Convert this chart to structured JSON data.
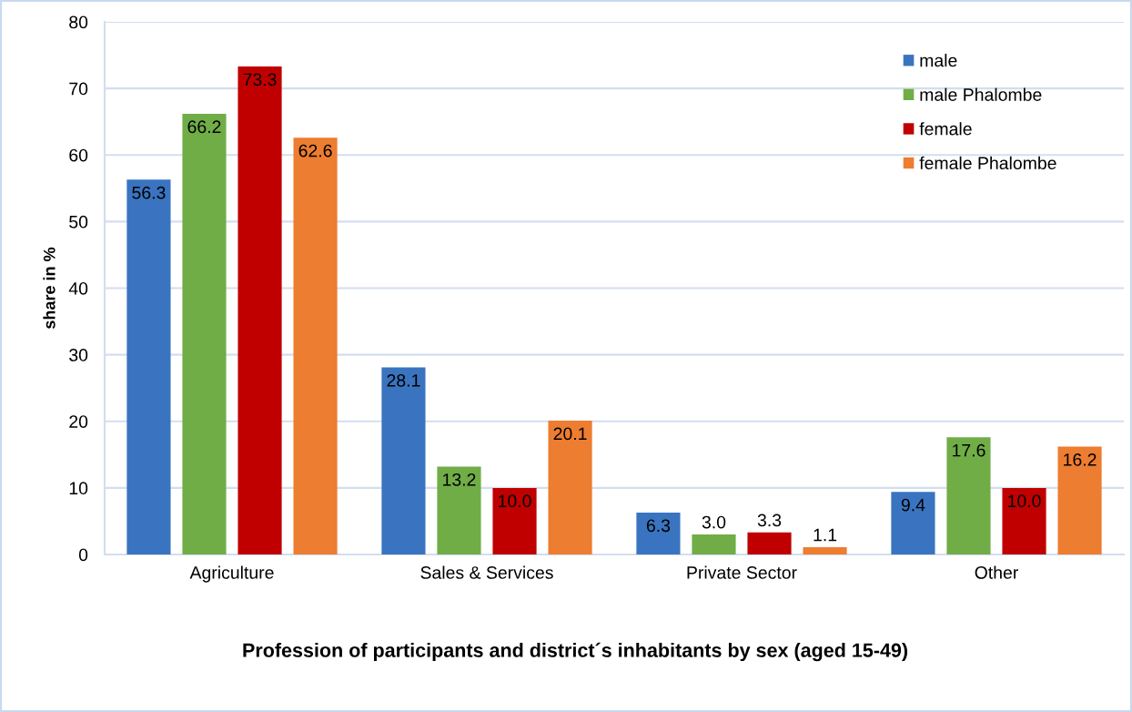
{
  "chart_data": {
    "type": "bar",
    "title": "Profession of participants and district´s inhabitants by sex (aged 15-49)",
    "ylabel": "share in %",
    "categories": [
      "Agriculture",
      "Sales & Services",
      "Private Sector",
      "Other"
    ],
    "series": [
      {
        "name": "male",
        "color": "#3a74c0",
        "values": [
          56.3,
          28.1,
          6.3,
          9.4
        ],
        "value_labels": [
          "56.3",
          "28.1",
          "6.3",
          "9.4"
        ]
      },
      {
        "name": "male Phalombe",
        "color": "#70ad47",
        "values": [
          66.2,
          13.2,
          3.0,
          17.6
        ],
        "value_labels": [
          "66.2",
          "13.2",
          "3.0",
          "17.6"
        ]
      },
      {
        "name": "female",
        "color": "#c00000",
        "values": [
          73.3,
          10.0,
          3.3,
          10.0
        ],
        "value_labels": [
          "73.3",
          "10.0",
          "3.3",
          "10.0"
        ]
      },
      {
        "name": "female Phalombe",
        "color": "#ed7d31",
        "values": [
          62.6,
          20.1,
          1.1,
          16.2
        ],
        "value_labels": [
          "62.6",
          "20.1",
          "1.1",
          "16.2"
        ]
      }
    ],
    "ylim": [
      0,
      80
    ],
    "yticks": [
      0,
      10,
      20,
      30,
      40,
      50,
      60,
      70,
      80
    ],
    "grid": "y",
    "legend": "top right"
  }
}
